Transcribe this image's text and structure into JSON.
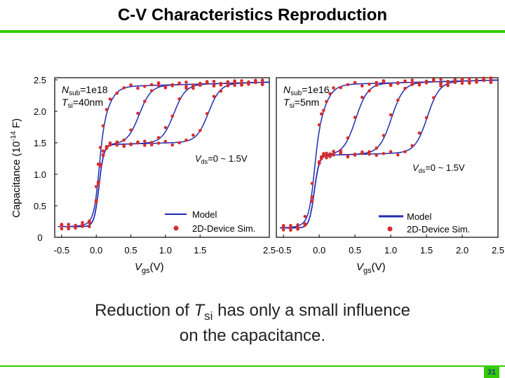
{
  "title": "C-V Characteristics Reproduction",
  "caption": {
    "line1_pre": "Reduction of ",
    "tsi_symbol": "T",
    "tsi_sub": "si",
    "line1_post": " has only a small influence",
    "line2": "on the capacitance."
  },
  "page_number": "31",
  "colors": {
    "accent": "#33cc00",
    "model": "#1f2db3",
    "sim": "#d92b2b"
  },
  "chart_data": [
    {
      "type": "line",
      "xlabel": "Vgs(V)",
      "ylabel": "Capacitance (10-14 F)",
      "xlim": [
        -0.6,
        2.5
      ],
      "ylim": [
        0,
        2.5
      ],
      "xticks": [
        "-0.5",
        "0.0",
        "0.5",
        "1.0",
        "1.5",
        "2.5"
      ],
      "xtick_values": [
        -0.5,
        0.0,
        0.5,
        1.0,
        1.5,
        2.5
      ],
      "yticks": [
        "0",
        "0.5",
        "1.0",
        "1.5",
        "2.0",
        "2.5"
      ],
      "ytick_values": [
        0,
        0.5,
        1.0,
        1.5,
        2.0,
        2.5
      ],
      "annotation_params": [
        "Nsub=1e18",
        "Tsi=40nm"
      ],
      "annotation_vds": "Vds=0 ~ 1.5V",
      "legend": [
        "Model",
        "2D-Device Sim."
      ],
      "legend_position": "bottom-right",
      "params": {
        "cmin": 0.17,
        "plateau": 1.47,
        "cmax": 2.39,
        "vth": 0.04,
        "vds": [
          0,
          0.5,
          1.0,
          1.5
        ]
      }
    },
    {
      "type": "line",
      "xlabel": "Vgs(V)",
      "xlim": [
        -0.6,
        2.5
      ],
      "ylim": [
        0,
        2.5
      ],
      "xticks": [
        "-0.5",
        "0.0",
        "0.5",
        "1.0",
        "1.5",
        "2.0",
        "2.5"
      ],
      "xtick_values": [
        -0.5,
        0.0,
        0.5,
        1.0,
        1.5,
        2.0,
        2.5
      ],
      "annotation_params": [
        "Nsub=1e16",
        "Tsi=5nm"
      ],
      "annotation_vds": "Vds=0 ~ 1.5V",
      "legend": [
        "Model",
        "2D-Device Sim."
      ],
      "legend_position": "bottom-right",
      "params": {
        "cmin": 0.15,
        "plateau": 1.3,
        "cmax": 2.42,
        "vth": -0.07,
        "vds": [
          0,
          0.5,
          1.0,
          1.5
        ]
      }
    }
  ]
}
